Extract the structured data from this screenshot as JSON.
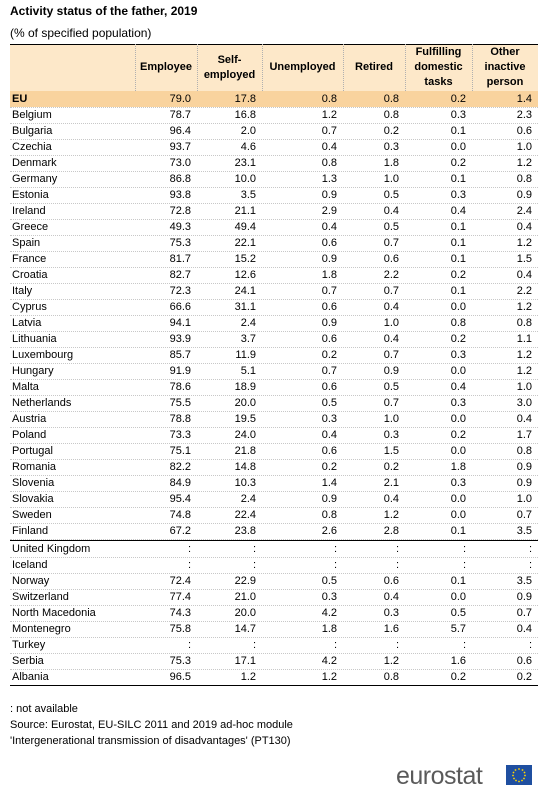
{
  "header": {
    "title": "Activity status of the father, 2019",
    "subtitle": "(% of specified population)"
  },
  "table": {
    "columns": [
      "Employee",
      "Self-employed",
      "Unemployed",
      "Retired",
      "Fulfilling domestic tasks",
      "Other inactive person"
    ],
    "rows": [
      [
        "EU",
        "79.0",
        "17.8",
        "0.8",
        "0.8",
        "0.2",
        "1.4"
      ],
      [
        "Belgium",
        "78.7",
        "16.8",
        "1.2",
        "0.8",
        "0.3",
        "2.3"
      ],
      [
        "Bulgaria",
        "96.4",
        "2.0",
        "0.7",
        "0.2",
        "0.1",
        "0.6"
      ],
      [
        "Czechia",
        "93.7",
        "4.6",
        "0.4",
        "0.3",
        "0.0",
        "1.0"
      ],
      [
        "Denmark",
        "73.0",
        "23.1",
        "0.8",
        "1.8",
        "0.2",
        "1.2"
      ],
      [
        "Germany",
        "86.8",
        "10.0",
        "1.3",
        "1.0",
        "0.1",
        "0.8"
      ],
      [
        "Estonia",
        "93.8",
        "3.5",
        "0.9",
        "0.5",
        "0.3",
        "0.9"
      ],
      [
        "Ireland",
        "72.8",
        "21.1",
        "2.9",
        "0.4",
        "0.4",
        "2.4"
      ],
      [
        "Greece",
        "49.3",
        "49.4",
        "0.4",
        "0.5",
        "0.1",
        "0.4"
      ],
      [
        "Spain",
        "75.3",
        "22.1",
        "0.6",
        "0.7",
        "0.1",
        "1.2"
      ],
      [
        "France",
        "81.7",
        "15.2",
        "0.9",
        "0.6",
        "0.1",
        "1.5"
      ],
      [
        "Croatia",
        "82.7",
        "12.6",
        "1.8",
        "2.2",
        "0.2",
        "0.4"
      ],
      [
        "Italy",
        "72.3",
        "24.1",
        "0.7",
        "0.7",
        "0.1",
        "2.2"
      ],
      [
        "Cyprus",
        "66.6",
        "31.1",
        "0.6",
        "0.4",
        "0.0",
        "1.2"
      ],
      [
        "Latvia",
        "94.1",
        "2.4",
        "0.9",
        "1.0",
        "0.8",
        "0.8"
      ],
      [
        "Lithuania",
        "93.9",
        "3.7",
        "0.6",
        "0.4",
        "0.2",
        "1.1"
      ],
      [
        "Luxembourg",
        "85.7",
        "11.9",
        "0.2",
        "0.7",
        "0.3",
        "1.2"
      ],
      [
        "Hungary",
        "91.9",
        "5.1",
        "0.7",
        "0.9",
        "0.0",
        "1.2"
      ],
      [
        "Malta",
        "78.6",
        "18.9",
        "0.6",
        "0.5",
        "0.4",
        "1.0"
      ],
      [
        "Netherlands",
        "75.5",
        "20.0",
        "0.5",
        "0.7",
        "0.3",
        "3.0"
      ],
      [
        "Austria",
        "78.8",
        "19.5",
        "0.3",
        "1.0",
        "0.0",
        "0.4"
      ],
      [
        "Poland",
        "73.3",
        "24.0",
        "0.4",
        "0.3",
        "0.2",
        "1.7"
      ],
      [
        "Portugal",
        "75.1",
        "21.8",
        "0.6",
        "1.5",
        "0.0",
        "0.8"
      ],
      [
        "Romania",
        "82.2",
        "14.8",
        "0.2",
        "0.2",
        "1.8",
        "0.9"
      ],
      [
        "Slovenia",
        "84.9",
        "10.3",
        "1.4",
        "2.1",
        "0.3",
        "0.9"
      ],
      [
        "Slovakia",
        "95.4",
        "2.4",
        "0.9",
        "0.4",
        "0.0",
        "1.0"
      ],
      [
        "Sweden",
        "74.8",
        "22.4",
        "0.8",
        "1.2",
        "0.0",
        "0.7"
      ],
      [
        "Finland",
        "67.2",
        "23.8",
        "2.6",
        "2.8",
        "0.1",
        "3.5"
      ]
    ],
    "other_rows": [
      [
        "United Kingdom",
        ":",
        ":",
        ":",
        ":",
        ":",
        ":"
      ],
      [
        "Iceland",
        ":",
        ":",
        ":",
        ":",
        ":",
        ":"
      ],
      [
        "Norway",
        "72.4",
        "22.9",
        "0.5",
        "0.6",
        "0.1",
        "3.5"
      ],
      [
        "Switzerland",
        "77.4",
        "21.0",
        "0.3",
        "0.4",
        "0.0",
        "0.9"
      ],
      [
        "North Macedonia",
        "74.3",
        "20.0",
        "4.2",
        "0.3",
        "0.5",
        "0.7"
      ],
      [
        "Montenegro",
        "75.8",
        "14.7",
        "1.8",
        "1.6",
        "5.7",
        "0.4"
      ],
      [
        "Turkey",
        ":",
        ":",
        ":",
        ":",
        ":",
        ":"
      ],
      [
        "Serbia",
        "75.3",
        "17.1",
        "4.2",
        "1.2",
        "1.6",
        "0.6"
      ],
      [
        "Albania",
        "96.5",
        "1.2",
        "1.2",
        "0.8",
        "0.2",
        "0.2"
      ]
    ]
  },
  "footer": {
    "notes": [
      ": not available",
      "Source: Eurostat, EU-SILC 2011 and 2019 ad-hoc module",
      "'Intergenerational transmission of disadvantages'  (PT130)"
    ]
  },
  "logo": "eurostat"
}
